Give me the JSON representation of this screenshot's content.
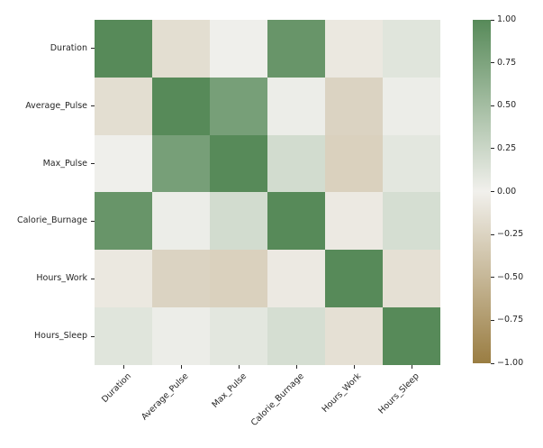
{
  "figure": {
    "background": "#ffffff",
    "text_color": "#262626"
  },
  "chart_data": {
    "type": "heatmap",
    "title": "",
    "xlabel": "",
    "ylabel": "",
    "categories": [
      "Duration",
      "Average_Pulse",
      "Max_Pulse",
      "Calorie_Burnage",
      "Hours_Work",
      "Hours_Sleep"
    ],
    "matrix": [
      [
        1.0,
        -0.16,
        0.01,
        0.89,
        -0.07,
        0.11
      ],
      [
        -0.16,
        1.0,
        0.79,
        0.03,
        -0.25,
        0.03
      ],
      [
        0.01,
        0.79,
        1.0,
        0.2,
        -0.27,
        0.09
      ],
      [
        0.89,
        0.03,
        0.2,
        1.0,
        -0.06,
        0.18
      ],
      [
        -0.07,
        -0.25,
        -0.27,
        -0.06,
        1.0,
        -0.14
      ],
      [
        0.11,
        0.03,
        0.09,
        0.18,
        -0.14,
        1.0
      ]
    ],
    "vmin": -1,
    "vmax": 1,
    "grid": false,
    "legend_position": "colorbar-right",
    "colormap": {
      "positive_end": "#578a59",
      "center": "#f1f0ec",
      "negative_end": "#9a7d42"
    },
    "colorbar_tick_labels": [
      "1.00",
      "0.75",
      "0.50",
      "0.25",
      "0.00",
      "−0.25",
      "−0.50",
      "−0.75",
      "−1.00"
    ]
  }
}
